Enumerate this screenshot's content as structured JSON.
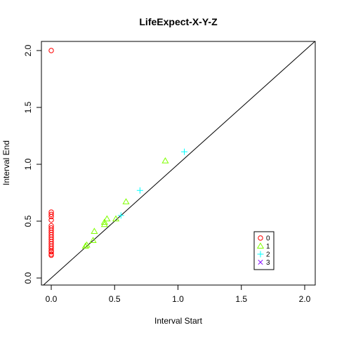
{
  "chart_data": {
    "type": "scatter",
    "title": "LifeExpect-X-Y-Z",
    "xlabel": "Interval Start",
    "ylabel": "Interval End",
    "xlim": [
      0,
      2
    ],
    "ylim": [
      0,
      2
    ],
    "xticks": [
      "0.0",
      "0.5",
      "1.0",
      "1.5",
      "2.0"
    ],
    "yticks": [
      "0.0",
      "0.5",
      "1.0",
      "1.5",
      "2.0"
    ],
    "reference_line": "y = x",
    "legend_position": "bottom-right",
    "series": [
      {
        "name": "0",
        "color": "#FF0000",
        "marker": "circle",
        "points": [
          [
            0,
            2.0
          ],
          [
            0,
            0.58
          ],
          [
            0,
            0.56
          ],
          [
            0,
            0.54
          ],
          [
            0,
            0.51
          ],
          [
            0,
            0.46
          ],
          [
            0,
            0.44
          ],
          [
            0,
            0.42
          ],
          [
            0,
            0.4
          ],
          [
            0,
            0.38
          ],
          [
            0,
            0.36
          ],
          [
            0,
            0.34
          ],
          [
            0,
            0.32
          ],
          [
            0,
            0.3
          ],
          [
            0,
            0.28
          ],
          [
            0,
            0.26
          ],
          [
            0,
            0.24
          ],
          [
            0,
            0.23
          ],
          [
            0,
            0.21
          ],
          [
            0,
            0.2
          ]
        ]
      },
      {
        "name": "1",
        "color": "#80FF00",
        "marker": "triangle",
        "points": [
          [
            0.27,
            0.28
          ],
          [
            0.28,
            0.29
          ],
          [
            0.33,
            0.33
          ],
          [
            0.34,
            0.41
          ],
          [
            0.42,
            0.47
          ],
          [
            0.42,
            0.49
          ],
          [
            0.44,
            0.52
          ],
          [
            0.51,
            0.52
          ],
          [
            0.59,
            0.67
          ],
          [
            0.9,
            1.03
          ]
        ]
      },
      {
        "name": "2",
        "color": "#00FFFF",
        "marker": "plus",
        "points": [
          [
            0.55,
            0.55
          ],
          [
            0.7,
            0.77
          ],
          [
            1.05,
            1.11
          ]
        ]
      },
      {
        "name": "3",
        "color": "#8000FF",
        "marker": "cross",
        "points": []
      }
    ]
  }
}
